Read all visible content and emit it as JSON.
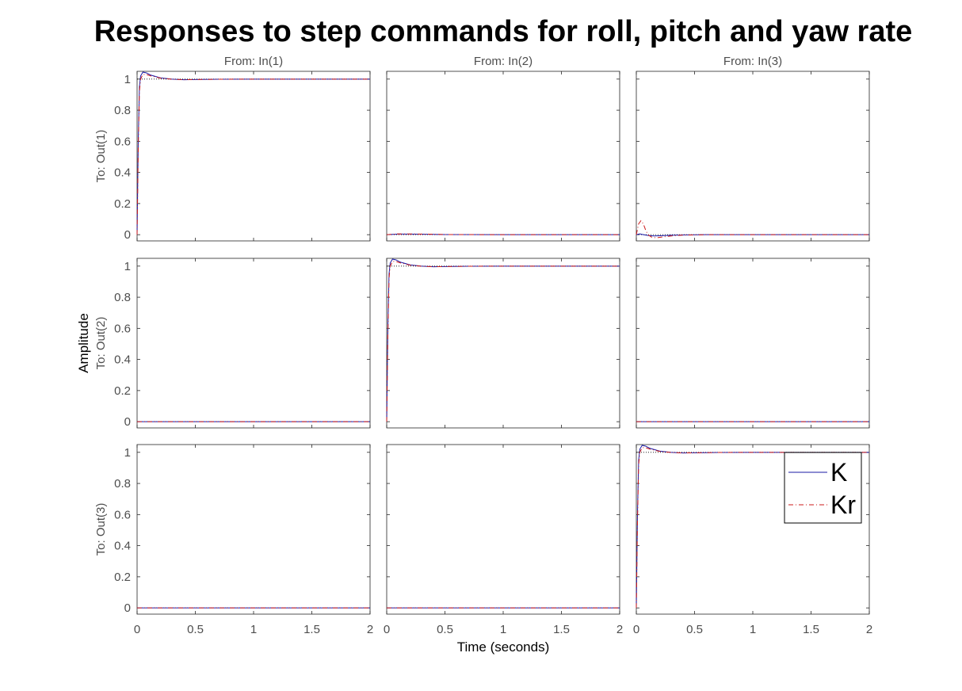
{
  "chart_data": {
    "type": "line",
    "title": "Responses to step commands for roll, pitch and yaw rate",
    "xlabel": "Time (seconds)",
    "ylabel": "Amplitude",
    "column_labels": [
      "From: In(1)",
      "From: In(2)",
      "From: In(3)"
    ],
    "row_labels": [
      "To: Out(1)",
      "To: Out(2)",
      "To: Out(3)"
    ],
    "xlim": [
      0,
      2
    ],
    "ylim": [
      -0.04,
      1.05
    ],
    "xticks": [
      0,
      0.5,
      1,
      1.5,
      2
    ],
    "xtick_labels": [
      "0",
      "0.5",
      "1",
      "1.5",
      "2"
    ],
    "yticks": [
      0,
      0.2,
      0.4,
      0.6,
      0.8,
      1
    ],
    "ytick_labels": [
      "0",
      "0.2",
      "0.4",
      "0.6",
      "0.8",
      "1"
    ],
    "legend": {
      "placement": "inside bottom-right subplot, top-right",
      "entries": [
        "K",
        "Kr"
      ]
    },
    "colors": {
      "K": "#1a1aa6",
      "Kr": "#cc1a1a",
      "reference": "#000000"
    },
    "series": [
      {
        "name": "K",
        "panels": [
          {
            "row": 1,
            "col": 1,
            "x": [
              0,
              0.01,
              0.02,
              0.03,
              0.05,
              0.08,
              0.12,
              0.2,
              0.3,
              0.4,
              0.5,
              0.7,
              1.0,
              1.5,
              2.0
            ],
            "y": [
              0,
              0.6,
              0.95,
              1.02,
              1.045,
              1.04,
              1.025,
              1.008,
              1.0,
              0.996,
              0.997,
              0.999,
              1.0,
              1.0,
              1.0
            ]
          },
          {
            "row": 1,
            "col": 2,
            "x": [
              0,
              0.1,
              0.3,
              0.5,
              1.0,
              2.0
            ],
            "y": [
              0,
              0.004,
              0.003,
              0.001,
              0,
              0
            ]
          },
          {
            "row": 1,
            "col": 3,
            "x": [
              0,
              0.03,
              0.06,
              0.1,
              0.15,
              0.2,
              0.3,
              0.4,
              0.6,
              1.0,
              2.0
            ],
            "y": [
              0,
              0.005,
              0.0,
              -0.005,
              -0.008,
              -0.007,
              -0.004,
              -0.002,
              0,
              0,
              0
            ]
          },
          {
            "row": 2,
            "col": 1,
            "x": [
              0,
              2
            ],
            "y": [
              0,
              0
            ]
          },
          {
            "row": 2,
            "col": 2,
            "x": [
              0,
              0.01,
              0.02,
              0.03,
              0.05,
              0.08,
              0.12,
              0.2,
              0.3,
              0.4,
              0.5,
              0.7,
              1.0,
              1.5,
              2.0
            ],
            "y": [
              0,
              0.6,
              0.95,
              1.02,
              1.045,
              1.04,
              1.025,
              1.008,
              1.0,
              0.996,
              0.997,
              0.999,
              1.0,
              1.0,
              1.0
            ]
          },
          {
            "row": 2,
            "col": 3,
            "x": [
              0,
              2
            ],
            "y": [
              0,
              0
            ]
          },
          {
            "row": 3,
            "col": 1,
            "x": [
              0,
              2
            ],
            "y": [
              0,
              0
            ]
          },
          {
            "row": 3,
            "col": 2,
            "x": [
              0,
              2
            ],
            "y": [
              0,
              0
            ]
          },
          {
            "row": 3,
            "col": 3,
            "x": [
              0,
              0.01,
              0.02,
              0.03,
              0.05,
              0.08,
              0.12,
              0.2,
              0.3,
              0.4,
              0.5,
              0.7,
              1.0,
              1.5,
              2.0
            ],
            "y": [
              0,
              0.6,
              0.95,
              1.02,
              1.045,
              1.04,
              1.025,
              1.008,
              1.0,
              0.996,
              0.997,
              0.999,
              1.0,
              1.0,
              1.0
            ]
          }
        ]
      },
      {
        "name": "Kr",
        "panels": [
          {
            "row": 1,
            "col": 1,
            "x": [
              0,
              0.01,
              0.02,
              0.03,
              0.05,
              0.08,
              0.12,
              0.2,
              0.3,
              0.4,
              0.5,
              0.7,
              1.0,
              1.5,
              2.0
            ],
            "y": [
              0,
              0.55,
              0.92,
              1.0,
              1.03,
              1.03,
              1.02,
              1.006,
              0.999,
              0.996,
              0.997,
              0.999,
              1.0,
              1.0,
              1.0
            ]
          },
          {
            "row": 1,
            "col": 2,
            "x": [
              0,
              0.1,
              0.3,
              0.5,
              1.0,
              2.0
            ],
            "y": [
              0,
              0.005,
              0.004,
              0.001,
              0,
              0
            ]
          },
          {
            "row": 1,
            "col": 3,
            "x": [
              0,
              0.02,
              0.04,
              0.06,
              0.08,
              0.1,
              0.13,
              0.17,
              0.22,
              0.3,
              0.4,
              0.6,
              1.0,
              2.0
            ],
            "y": [
              0,
              0.07,
              0.09,
              0.07,
              0.03,
              0.0,
              -0.015,
              -0.02,
              -0.015,
              -0.008,
              -0.003,
              0,
              0,
              0
            ]
          },
          {
            "row": 2,
            "col": 1,
            "x": [
              0,
              2
            ],
            "y": [
              0,
              0
            ]
          },
          {
            "row": 2,
            "col": 2,
            "x": [
              0,
              0.01,
              0.02,
              0.03,
              0.05,
              0.08,
              0.12,
              0.2,
              0.3,
              0.4,
              0.5,
              0.7,
              1.0,
              1.5,
              2.0
            ],
            "y": [
              0,
              0.55,
              0.92,
              1.0,
              1.03,
              1.03,
              1.02,
              1.006,
              0.999,
              0.996,
              0.997,
              0.999,
              1.0,
              1.0,
              1.0
            ]
          },
          {
            "row": 2,
            "col": 3,
            "x": [
              0,
              2
            ],
            "y": [
              0,
              0
            ]
          },
          {
            "row": 3,
            "col": 1,
            "x": [
              0,
              2
            ],
            "y": [
              0,
              0
            ]
          },
          {
            "row": 3,
            "col": 2,
            "x": [
              0,
              2
            ],
            "y": [
              0,
              0
            ]
          },
          {
            "row": 3,
            "col": 3,
            "x": [
              0,
              0.01,
              0.02,
              0.03,
              0.05,
              0.08,
              0.12,
              0.2,
              0.3,
              0.4,
              0.5,
              0.7,
              1.0,
              1.5,
              2.0
            ],
            "y": [
              0,
              0.55,
              0.92,
              1.0,
              1.03,
              1.03,
              1.02,
              1.006,
              0.999,
              0.996,
              0.997,
              0.999,
              1.0,
              1.0,
              1.0
            ]
          }
        ]
      }
    ],
    "reference_lines": [
      {
        "row": 1,
        "col": 1,
        "y": 1
      },
      {
        "row": 1,
        "col": 2,
        "y": 0
      },
      {
        "row": 1,
        "col": 3,
        "y": 0
      },
      {
        "row": 2,
        "col": 1,
        "y": 0
      },
      {
        "row": 2,
        "col": 2,
        "y": 1
      },
      {
        "row": 2,
        "col": 3,
        "y": 0
      },
      {
        "row": 3,
        "col": 1,
        "y": 0
      },
      {
        "row": 3,
        "col": 2,
        "y": 0
      },
      {
        "row": 3,
        "col": 3,
        "y": 1
      }
    ]
  }
}
